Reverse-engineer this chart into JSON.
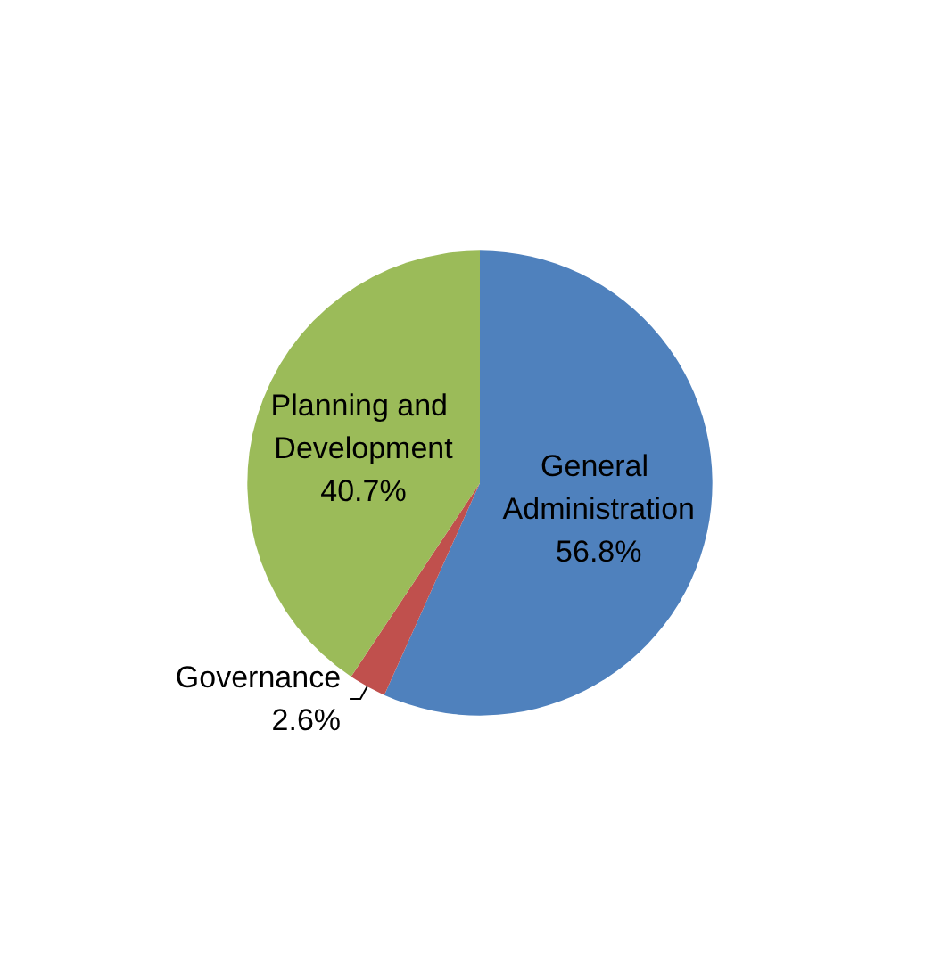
{
  "chart_data": {
    "type": "pie",
    "categories": [
      "General Administration",
      "Governance",
      "Planning and Development"
    ],
    "values": [
      56.8,
      2.6,
      40.7
    ],
    "value_labels": [
      "56.8%",
      "2.6%",
      "40.7%"
    ],
    "colors": [
      "#4f81bd",
      "#c0504d",
      "#9bbb59"
    ],
    "legend": false
  }
}
